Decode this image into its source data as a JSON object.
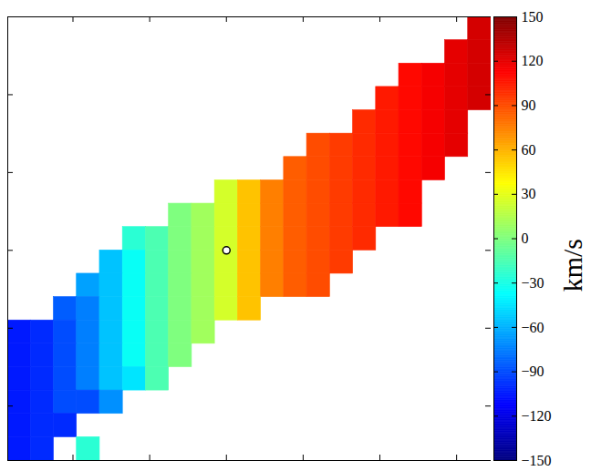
{
  "chart_data": {
    "type": "heatmap",
    "xlim": [
      -2.85,
      3.45
    ],
    "ylim": [
      -2.7,
      3.0
    ],
    "xticks": [
      -2,
      -1,
      0,
      1,
      2,
      3
    ],
    "yticks": [
      -2,
      -1,
      0,
      1,
      2
    ],
    "tick_labels": false,
    "x": [
      -2.7,
      -2.4,
      -2.1,
      -1.8,
      -1.5,
      -1.2,
      -0.9,
      -0.6,
      -0.3,
      0,
      0.3,
      0.6,
      0.9,
      1.2,
      1.5,
      1.8,
      2.1,
      2.4,
      2.7,
      3.0,
      3.3
    ],
    "y": [
      2.85,
      2.55,
      2.25,
      1.95,
      1.65,
      1.35,
      1.05,
      0.75,
      0.45,
      0.15,
      -0.15,
      -0.45,
      -0.75,
      -1.05,
      -1.35,
      -1.65,
      -1.95,
      -2.25,
      -2.55
    ],
    "values": [
      [
        null,
        null,
        null,
        null,
        null,
        null,
        null,
        null,
        null,
        null,
        null,
        null,
        null,
        null,
        null,
        null,
        null,
        null,
        null,
        null,
        125
      ],
      [
        null,
        null,
        null,
        null,
        null,
        null,
        null,
        null,
        null,
        null,
        null,
        null,
        null,
        null,
        null,
        null,
        null,
        null,
        null,
        120,
        125
      ],
      [
        null,
        null,
        null,
        null,
        null,
        null,
        null,
        null,
        null,
        null,
        null,
        null,
        null,
        null,
        null,
        null,
        null,
        110,
        115,
        120,
        125
      ],
      [
        null,
        null,
        null,
        null,
        null,
        null,
        null,
        null,
        null,
        null,
        null,
        null,
        null,
        null,
        null,
        null,
        105,
        110,
        115,
        120,
        125
      ],
      [
        null,
        null,
        null,
        null,
        null,
        null,
        null,
        null,
        null,
        null,
        null,
        null,
        null,
        null,
        null,
        100,
        105,
        110,
        115,
        120,
        null
      ],
      [
        null,
        null,
        null,
        null,
        null,
        null,
        null,
        null,
        null,
        null,
        null,
        null,
        null,
        90,
        95,
        100,
        105,
        110,
        115,
        120,
        null
      ],
      [
        null,
        null,
        null,
        null,
        null,
        null,
        null,
        null,
        null,
        null,
        null,
        null,
        85,
        90,
        95,
        100,
        105,
        110,
        115,
        null,
        null
      ],
      [
        null,
        null,
        null,
        null,
        null,
        null,
        null,
        null,
        null,
        25,
        55,
        75,
        85,
        90,
        95,
        100,
        105,
        110,
        null,
        null,
        null
      ],
      [
        null,
        null,
        null,
        null,
        null,
        null,
        null,
        0,
        10,
        25,
        55,
        75,
        85,
        90,
        95,
        100,
        105,
        110,
        null,
        null,
        null
      ],
      [
        null,
        null,
        null,
        null,
        null,
        -25,
        -15,
        0,
        10,
        25,
        55,
        75,
        85,
        90,
        95,
        100,
        null,
        null,
        null,
        null,
        null
      ],
      [
        null,
        null,
        null,
        null,
        -55,
        -35,
        -15,
        0,
        10,
        25,
        55,
        75,
        85,
        90,
        95,
        null,
        null,
        null,
        null,
        null,
        null
      ],
      [
        null,
        null,
        null,
        -65,
        -55,
        -35,
        -15,
        0,
        10,
        25,
        55,
        75,
        85,
        90,
        null,
        null,
        null,
        null,
        null,
        null,
        null
      ],
      [
        null,
        null,
        -85,
        -75,
        -55,
        -35,
        -15,
        0,
        10,
        25,
        55,
        null,
        null,
        null,
        null,
        null,
        null,
        null,
        null,
        null,
        null
      ],
      [
        -105,
        -100,
        -90,
        -75,
        -55,
        -35,
        -15,
        0,
        10,
        null,
        null,
        null,
        null,
        null,
        null,
        null,
        null,
        null,
        null,
        null,
        null
      ],
      [
        -105,
        -100,
        -90,
        -75,
        -55,
        -35,
        -15,
        0,
        null,
        null,
        null,
        null,
        null,
        null,
        null,
        null,
        null,
        null,
        null,
        null,
        null
      ],
      [
        -105,
        -100,
        -90,
        -75,
        -55,
        -45,
        -15,
        null,
        null,
        null,
        null,
        null,
        null,
        null,
        null,
        null,
        null,
        null,
        null,
        null,
        null
      ],
      [
        -105,
        -100,
        -90,
        -90,
        -70,
        null,
        null,
        null,
        null,
        null,
        null,
        null,
        null,
        null,
        null,
        null,
        null,
        null,
        null,
        null,
        null
      ],
      [
        -105,
        -100,
        -100,
        null,
        null,
        null,
        null,
        null,
        null,
        null,
        null,
        null,
        null,
        null,
        null,
        null,
        null,
        null,
        null,
        null,
        null
      ],
      [
        -105,
        -100,
        null,
        -25,
        null,
        null,
        null,
        null,
        null,
        null,
        null,
        null,
        null,
        null,
        null,
        null,
        null,
        null,
        null,
        null,
        null
      ]
    ],
    "center": [
      0,
      0
    ],
    "colorbar": {
      "range": [
        -150,
        150
      ],
      "ticks": [
        -150,
        -120,
        -90,
        -60,
        -30,
        0,
        30,
        60,
        90,
        120,
        150
      ],
      "label": "km/s"
    }
  }
}
